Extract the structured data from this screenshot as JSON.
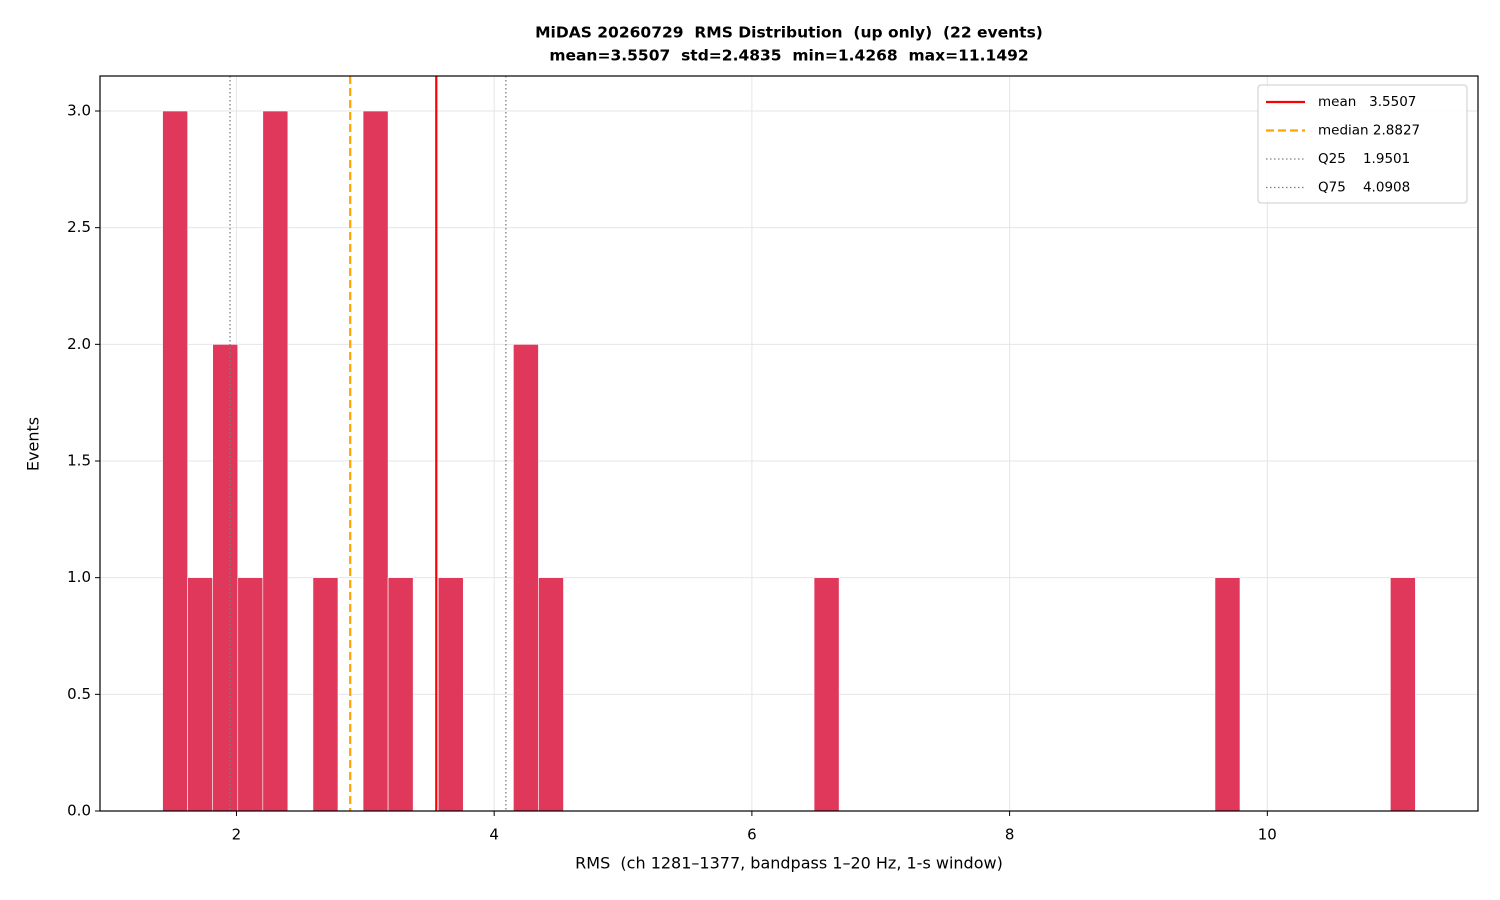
{
  "chart_data": {
    "type": "histogram",
    "title": "MiDAS 20260729  RMS Distribution  (up only)  (22 events)",
    "subtitle": "mean=3.5507  std=2.4835  min=1.4268  max=11.1492",
    "xlabel": "RMS  (ch 1281–1377, bandpass 1–20 Hz, 1-s window)",
    "ylabel": "Events",
    "bins": [
      1.4268,
      1.6212,
      1.8157,
      2.0101,
      2.2046,
      2.399,
      2.5935,
      2.7879,
      2.9824,
      3.1768,
      3.3713,
      3.5657,
      3.7602,
      3.9546,
      4.1491,
      4.3435,
      4.538,
      4.7324,
      4.9269,
      5.1213,
      5.3158,
      5.5102,
      5.7047,
      5.8991,
      6.0936,
      6.288,
      6.4824,
      6.6769,
      6.8713,
      7.0658,
      7.2602,
      7.4547,
      7.6491,
      7.8436,
      8.038,
      8.2325,
      8.4269,
      8.6214,
      8.8158,
      9.0103,
      9.2047,
      9.3992,
      9.5936,
      9.7881,
      9.9825,
      10.177,
      10.3714,
      10.5659,
      10.7603,
      10.9548,
      11.1492
    ],
    "values": [
      3,
      1,
      2,
      1,
      3,
      0,
      1,
      0,
      3,
      1,
      0,
      1,
      0,
      0,
      2,
      1,
      0,
      0,
      0,
      0,
      0,
      0,
      0,
      0,
      0,
      0,
      1,
      0,
      0,
      0,
      0,
      0,
      0,
      0,
      0,
      0,
      0,
      0,
      0,
      0,
      0,
      0,
      1,
      0,
      0,
      0,
      0,
      0,
      0,
      1
    ],
    "color": "#e0385a",
    "xlim": [
      0.941,
      11.635
    ],
    "ylim": [
      0,
      3.15
    ],
    "xticks": [
      2,
      4,
      6,
      8,
      10
    ],
    "yticks": [
      {
        "value": 0,
        "label": "0.0"
      },
      {
        "value": 0.5,
        "label": "0.5"
      },
      {
        "value": 1,
        "label": "1.0"
      },
      {
        "value": 1.5,
        "label": "1.5"
      },
      {
        "value": 2,
        "label": "2.0"
      },
      {
        "value": 2.5,
        "label": "2.5"
      },
      {
        "value": 3,
        "label": "3.0"
      }
    ],
    "grid": true,
    "legend": "upper right",
    "lines": [
      {
        "name": "mean   3.5507",
        "value": 3.5507,
        "color": "#ff0000",
        "style": "solid"
      },
      {
        "name": "median 2.8827",
        "value": 2.8827,
        "color": "#ffa500",
        "style": "dashed"
      },
      {
        "name": "Q25    1.9501",
        "value": 1.9501,
        "color": "#808080",
        "style": "dotted"
      },
      {
        "name": "Q75    4.0908",
        "value": 4.0908,
        "color": "#808080",
        "style": "dotted"
      }
    ]
  }
}
